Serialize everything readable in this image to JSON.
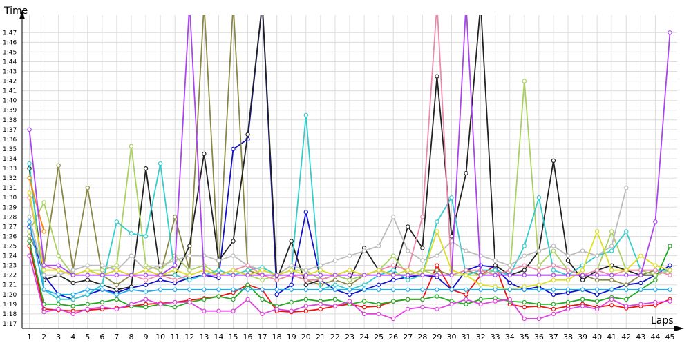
{
  "chart_data": {
    "type": "line",
    "title": "",
    "xlabel": "Laps",
    "ylabel": "Time",
    "x": [
      1,
      2,
      3,
      4,
      5,
      6,
      7,
      8,
      9,
      10,
      11,
      12,
      13,
      14,
      15,
      16,
      17,
      18,
      19,
      20,
      21,
      22,
      23,
      24,
      25,
      26,
      27,
      28,
      29,
      30,
      31,
      32,
      33,
      34,
      35,
      36,
      37,
      38,
      39,
      40,
      41,
      42,
      43,
      44,
      45
    ],
    "xlim": [
      0.5,
      45.5
    ],
    "ylim": [
      76.5,
      108.8
    ],
    "y_ticks": [
      77,
      78,
      79,
      80,
      81,
      82,
      83,
      84,
      85,
      86,
      87,
      88,
      89,
      90,
      91,
      92,
      93,
      94,
      95,
      96,
      97,
      98,
      99,
      100,
      101,
      102,
      103,
      104,
      105,
      106,
      107
    ],
    "y_tick_labels": [
      "1:17",
      "1:18",
      "1:19",
      "1:20",
      "1:21",
      "1:22",
      "1:23",
      "1:24",
      "1:25",
      "1:26",
      "1:27",
      "1:28",
      "1:29",
      "1:30",
      "1:31",
      "1:32",
      "1:33",
      "1:34",
      "1:35",
      "1:36",
      "1:37",
      "1:38",
      "1:39",
      "1:40",
      "1:41",
      "1:42",
      "1:43",
      "1:44",
      "1:45",
      "1:46",
      "1:47"
    ],
    "grid": true,
    "legend": "none",
    "series": [
      {
        "color": "#ee1111",
        "values": [
          85.0,
          78.5,
          78.4,
          78.3,
          78.4,
          78.5,
          78.6,
          78.8,
          79.0,
          79.1,
          79.2,
          79.4,
          79.6,
          79.8,
          80.2,
          81.0,
          80.5,
          78.3,
          78.2,
          78.3,
          78.5,
          78.8,
          79.0,
          78.7,
          78.8,
          79.3,
          79.5,
          79.5,
          83.0,
          80.5,
          80.0,
          82.0,
          83.0,
          79.0,
          78.7,
          78.8,
          78.5,
          78.8,
          79.0,
          78.7,
          78.9,
          78.6,
          78.8,
          78.9,
          79.5
        ]
      },
      {
        "color": "#1111cc",
        "values": [
          87.0,
          82.0,
          80.0,
          79.5,
          80.0,
          80.5,
          80.2,
          80.7,
          81.0,
          81.5,
          81.2,
          81.7,
          82.0,
          81.7,
          95.0,
          96.0,
          110.0,
          80.0,
          81.0,
          88.5,
          81.5,
          80.5,
          80.0,
          80.5,
          81.0,
          81.5,
          81.8,
          82.0,
          81.8,
          80.5,
          82.5,
          83.0,
          82.8,
          81.2,
          80.5,
          80.8,
          80.0,
          80.2,
          80.5,
          80.0,
          80.5,
          81.0,
          81.2,
          82.0,
          83.0
        ]
      },
      {
        "color": "#22aa22",
        "values": [
          85.5,
          79.0,
          79.0,
          78.8,
          79.0,
          79.2,
          79.5,
          78.8,
          78.7,
          79.0,
          78.7,
          79.2,
          79.5,
          79.8,
          79.5,
          81.0,
          79.5,
          78.8,
          79.2,
          79.5,
          79.3,
          79.5,
          79.0,
          79.3,
          79.0,
          79.3,
          79.5,
          79.5,
          79.8,
          79.3,
          79.0,
          79.5,
          79.6,
          79.3,
          79.2,
          79.0,
          79.0,
          79.2,
          79.5,
          79.3,
          79.7,
          79.5,
          80.5,
          81.5,
          85.0
        ]
      },
      {
        "color": "#dd44dd",
        "values": [
          84.0,
          78.2,
          78.5,
          78.0,
          78.5,
          78.7,
          78.5,
          79.0,
          79.5,
          79.0,
          79.2,
          79.2,
          78.3,
          78.3,
          78.3,
          79.5,
          78.0,
          78.5,
          78.3,
          78.8,
          79.0,
          78.8,
          79.3,
          78.0,
          78.0,
          77.5,
          78.5,
          78.7,
          78.5,
          79.0,
          79.5,
          79.0,
          79.3,
          79.5,
          77.5,
          77.5,
          78.0,
          78.5,
          78.8,
          78.5,
          79.5,
          78.8,
          79.0,
          79.2,
          79.3
        ]
      },
      {
        "color": "#888844",
        "values": [
          86.0,
          83.0,
          93.3,
          82.5,
          91.0,
          82.0,
          81.0,
          82.0,
          82.5,
          82.0,
          88.0,
          82.5,
          110.0,
          82.5,
          110.0,
          82.5,
          82.0,
          81.5,
          82.0,
          81.5,
          81.0,
          81.5,
          81.0,
          82.0,
          82.5,
          82.0,
          82.0,
          82.5,
          82.5,
          82.0,
          82.5,
          82.0,
          82.5,
          82.0,
          82.0,
          82.0,
          82.0,
          82.0,
          82.0,
          81.5,
          81.5,
          81.0,
          82.0,
          82.5,
          82.5
        ]
      },
      {
        "color": "#222222",
        "values": [
          93.0,
          81.5,
          82.0,
          81.2,
          81.5,
          81.0,
          80.5,
          80.8,
          93.0,
          82.0,
          82.0,
          85.0,
          94.5,
          83.5,
          85.5,
          96.5,
          110.0,
          81.5,
          85.5,
          81.0,
          81.5,
          82.0,
          81.5,
          84.8,
          82.5,
          82.0,
          87.0,
          84.8,
          102.5,
          86.0,
          92.5,
          110.0,
          83.0,
          82.0,
          82.5,
          84.5,
          93.8,
          83.5,
          81.5,
          82.5,
          83.0,
          82.5,
          82.0,
          82.0,
          82.5
        ]
      },
      {
        "color": "#aad060",
        "values": [
          86.5,
          89.5,
          84.0,
          82.0,
          82.5,
          82.5,
          83.0,
          95.3,
          83.0,
          82.5,
          84.0,
          82.5,
          83.0,
          82.0,
          82.5,
          82.0,
          81.5,
          82.0,
          82.5,
          82.5,
          81.5,
          82.0,
          81.5,
          82.0,
          82.5,
          84.0,
          82.0,
          82.5,
          82.0,
          82.0,
          82.0,
          82.0,
          82.5,
          82.0,
          102.0,
          83.0,
          84.5,
          82.5,
          82.0,
          82.5,
          86.5,
          82.5,
          82.5,
          82.0,
          82.5
        ]
      },
      {
        "color": "#33cccc",
        "values": [
          93.5,
          80.5,
          79.5,
          79.5,
          80.0,
          81.0,
          87.5,
          86.3,
          86.0,
          93.5,
          82.0,
          81.5,
          82.0,
          82.5,
          82.0,
          82.5,
          82.8,
          82.0,
          82.5,
          98.5,
          80.5,
          81.0,
          80.5,
          81.0,
          82.0,
          82.5,
          81.5,
          82.0,
          87.5,
          90.0,
          82.0,
          82.5,
          82.5,
          82.0,
          85.0,
          90.0,
          82.5,
          82.0,
          83.0,
          84.0,
          84.5,
          86.5,
          82.5,
          82.5,
          82.5
        ]
      },
      {
        "color": "#bbbbbb",
        "values": [
          88.0,
          82.0,
          82.0,
          82.5,
          83.0,
          83.0,
          82.5,
          84.0,
          82.5,
          83.0,
          83.5,
          84.0,
          84.0,
          83.5,
          84.0,
          83.0,
          82.5,
          82.0,
          83.0,
          82.5,
          83.0,
          83.5,
          84.0,
          84.5,
          85.0,
          88.0,
          84.5,
          83.5,
          84.0,
          85.5,
          84.5,
          84.0,
          83.5,
          83.0,
          84.0,
          84.5,
          85.0,
          84.0,
          84.5,
          84.0,
          85.0,
          91.0,
          null,
          null,
          null
        ]
      },
      {
        "color": "#ee88aa",
        "values": [
          90.0,
          83.0,
          82.5,
          82.0,
          82.5,
          82.0,
          82.5,
          82.0,
          81.5,
          82.0,
          81.5,
          82.0,
          82.5,
          82.0,
          82.5,
          83.0,
          82.0,
          81.5,
          82.0,
          81.5,
          81.5,
          82.0,
          82.5,
          82.0,
          82.5,
          83.0,
          82.5,
          88.0,
          110.0,
          82.0,
          82.5,
          82.5,
          82.0,
          82.5,
          83.0,
          82.5,
          83.0,
          82.5,
          82.0,
          82.5,
          82.0,
          82.5,
          82.5,
          82.5,
          82.0
        ]
      },
      {
        "color": "#dddd22",
        "values": [
          90.5,
          82.5,
          82.5,
          82.0,
          82.5,
          82.0,
          82.5,
          82.0,
          82.5,
          82.0,
          82.5,
          82.0,
          82.5,
          82.0,
          82.5,
          82.0,
          82.5,
          82.0,
          82.5,
          82.0,
          82.5,
          82.0,
          82.5,
          82.0,
          82.5,
          82.0,
          82.5,
          82.0,
          86.5,
          82.5,
          82.0,
          81.0,
          80.8,
          80.5,
          80.8,
          81.0,
          81.5,
          81.5,
          82.5,
          86.5,
          82.5,
          82.5,
          84.0,
          83.0,
          82.5
        ]
      },
      {
        "color": "#ff8800",
        "values": [
          92.0,
          86.5,
          null,
          null,
          null,
          null,
          null,
          null,
          null,
          null,
          null,
          null,
          null,
          null,
          null,
          null,
          null,
          null,
          null,
          null,
          null,
          null,
          null,
          null,
          null,
          null,
          null,
          null,
          null,
          null,
          null,
          null,
          null,
          null,
          null,
          null,
          null,
          null,
          null,
          null,
          null,
          null,
          null,
          null,
          null
        ]
      },
      {
        "color": "#22aaee",
        "values": [
          87.5,
          80.5,
          80.0,
          80.0,
          80.5,
          80.5,
          80.0,
          80.5,
          80.3,
          80.5,
          80.5,
          80.5,
          80.5,
          80.5,
          80.5,
          80.5,
          80.5,
          80.5,
          80.5,
          80.5,
          80.5,
          80.5,
          80.5,
          80.5,
          80.5,
          80.5,
          80.5,
          80.5,
          80.5,
          80.5,
          80.5,
          80.5,
          80.5,
          80.5,
          80.5,
          80.5,
          80.5,
          80.5,
          80.5,
          80.5,
          80.5,
          80.5,
          80.5,
          80.5,
          80.5
        ]
      },
      {
        "color": "#aa44ee",
        "values": [
          97.0,
          83.0,
          83.0,
          82.0,
          82.0,
          82.0,
          82.0,
          82.0,
          82.0,
          82.0,
          83.0,
          110.0,
          82.0,
          82.0,
          82.0,
          82.0,
          82.0,
          82.0,
          82.0,
          82.0,
          82.0,
          82.0,
          82.0,
          82.0,
          82.0,
          82.0,
          82.0,
          82.0,
          82.0,
          82.0,
          110.0,
          82.0,
          82.0,
          82.0,
          82.0,
          82.0,
          82.0,
          82.0,
          82.0,
          82.0,
          82.0,
          82.0,
          82.0,
          87.5,
          107.0
        ]
      }
    ]
  }
}
